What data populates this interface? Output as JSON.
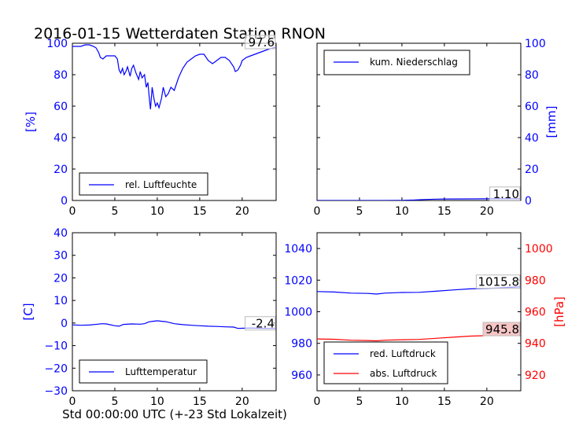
{
  "title": "2016-01-15 Wetterdaten Station RNON",
  "xlabel": "Std 00:00:00 UTC (+-23 Std Lokalzeit)",
  "colors": {
    "blue": "#0000ff",
    "red": "#ff0000",
    "black": "#000000"
  },
  "chart_data": [
    {
      "type": "line",
      "ylabel": "[%]",
      "xlim": [
        0,
        24
      ],
      "ylim": [
        0,
        100
      ],
      "xticks": [
        0,
        5,
        10,
        15,
        20
      ],
      "yticks": [
        0,
        20,
        40,
        60,
        80,
        100
      ],
      "legend": "lower-left",
      "annotation": "97.6",
      "series": [
        {
          "name": "rel. Luftfeuchte",
          "color": "#0000ff",
          "x": [
            0,
            0.5,
            1,
            1.5,
            2,
            2.5,
            2.8,
            3.1,
            3.3,
            3.6,
            4,
            4.5,
            5,
            5.3,
            5.5,
            5.7,
            5.9,
            6.1,
            6.3,
            6.5,
            6.8,
            7,
            7.2,
            7.5,
            7.8,
            8,
            8.2,
            8.5,
            8.7,
            8.9,
            9.1,
            9.2,
            9.4,
            9.6,
            9.8,
            10,
            10.2,
            10.5,
            10.7,
            11,
            11.3,
            11.6,
            12,
            12.5,
            13,
            13.5,
            14,
            14.5,
            15,
            15.5,
            16,
            16.5,
            17,
            17.5,
            18,
            18.5,
            19,
            19.2,
            19.5,
            19.8,
            20,
            20.5,
            21,
            22,
            23,
            24
          ],
          "y": [
            98,
            98,
            98,
            99,
            99,
            98,
            97,
            94,
            91,
            90,
            92,
            92,
            92,
            90,
            83,
            81,
            84,
            80,
            82,
            85,
            79,
            84,
            86,
            81,
            77,
            82,
            78,
            80,
            72,
            75,
            63,
            58,
            72,
            65,
            60,
            62,
            59,
            65,
            72,
            66,
            68,
            72,
            70,
            78,
            84,
            88,
            90,
            92,
            93,
            93,
            89,
            87,
            89,
            91,
            91,
            89,
            85,
            82,
            83,
            86,
            89,
            91,
            92,
            94,
            96,
            97.6
          ]
        }
      ]
    },
    {
      "type": "line",
      "ylabel": "[mm]",
      "xlim": [
        0,
        24
      ],
      "ylim": [
        0,
        100
      ],
      "xticks": [
        0,
        5,
        10,
        15,
        20
      ],
      "yticks": [
        0,
        20,
        40,
        60,
        80,
        100
      ],
      "legend": "upper-left",
      "annotation": "1.10",
      "series": [
        {
          "name": "kum. Niederschlag",
          "color": "#0000ff",
          "x": [
            0,
            8,
            10,
            11.5,
            12.5,
            14,
            15,
            18,
            20,
            22,
            24
          ],
          "y": [
            0,
            0,
            0.05,
            0.3,
            0.6,
            0.85,
            0.95,
            1.0,
            1.05,
            1.1,
            1.1
          ]
        }
      ]
    },
    {
      "type": "line",
      "ylabel": "[C]",
      "xlim": [
        0,
        24
      ],
      "ylim": [
        -30,
        40
      ],
      "xticks": [
        0,
        5,
        10,
        15,
        20
      ],
      "yticks": [
        -30,
        -20,
        -10,
        0,
        10,
        20,
        30,
        40
      ],
      "legend": "lower-left",
      "annotation": "-2.4",
      "series": [
        {
          "name": "Lufttemperatur",
          "color": "#0000ff",
          "x": [
            0,
            1,
            2,
            3,
            3.5,
            4,
            5,
            5.5,
            6,
            7,
            8,
            8.5,
            9,
            9.5,
            10,
            10.5,
            11,
            12,
            13,
            14,
            15,
            16,
            17,
            18,
            19,
            19.5,
            20,
            21,
            22,
            23,
            24
          ],
          "y": [
            -0.8,
            -1,
            -0.9,
            -0.5,
            -0.3,
            -0.4,
            -1.2,
            -1.4,
            -0.6,
            -0.4,
            -0.5,
            -0.3,
            0.5,
            0.8,
            1,
            0.8,
            0.6,
            -0.3,
            -0.7,
            -1,
            -1.2,
            -1.4,
            -1.5,
            -1.7,
            -1.8,
            -2.4,
            -2.3,
            -2.2,
            -2.3,
            -2.4,
            -2.4
          ]
        }
      ]
    },
    {
      "type": "line",
      "ylabel": "[hPa]",
      "xlim": [
        0,
        24
      ],
      "ylim": [
        950,
        1050
      ],
      "ylim_right": [
        910,
        1010
      ],
      "xticks": [
        0,
        5,
        10,
        15,
        20
      ],
      "yticks": [
        960,
        980,
        1000,
        1020,
        1040
      ],
      "yticks_right": [
        920,
        940,
        960,
        980,
        1000
      ],
      "legend": "lower-left",
      "annotations": [
        "1015.8",
        "945.8"
      ],
      "series": [
        {
          "name": "red. Luftdruck",
          "color": "#0000ff",
          "axis": "left",
          "x": [
            0,
            2,
            4,
            6,
            7,
            8,
            10,
            12,
            14,
            16,
            18,
            20,
            22,
            24
          ],
          "y": [
            1012.8,
            1012.5,
            1011.8,
            1011.6,
            1011.2,
            1011.8,
            1012.2,
            1012.3,
            1013,
            1013.8,
            1014.5,
            1014.8,
            1015.2,
            1015.8
          ]
        },
        {
          "name": "abs. Luftdruck",
          "color": "#ff0000",
          "axis": "right",
          "x": [
            0,
            2,
            4,
            6,
            7,
            8,
            10,
            12,
            14,
            16,
            18,
            20,
            22,
            24
          ],
          "y": [
            942.8,
            942.6,
            942,
            941.8,
            941.6,
            942,
            942.3,
            942.5,
            943.2,
            943.9,
            944.6,
            944.9,
            945.3,
            945.8
          ]
        }
      ]
    }
  ]
}
